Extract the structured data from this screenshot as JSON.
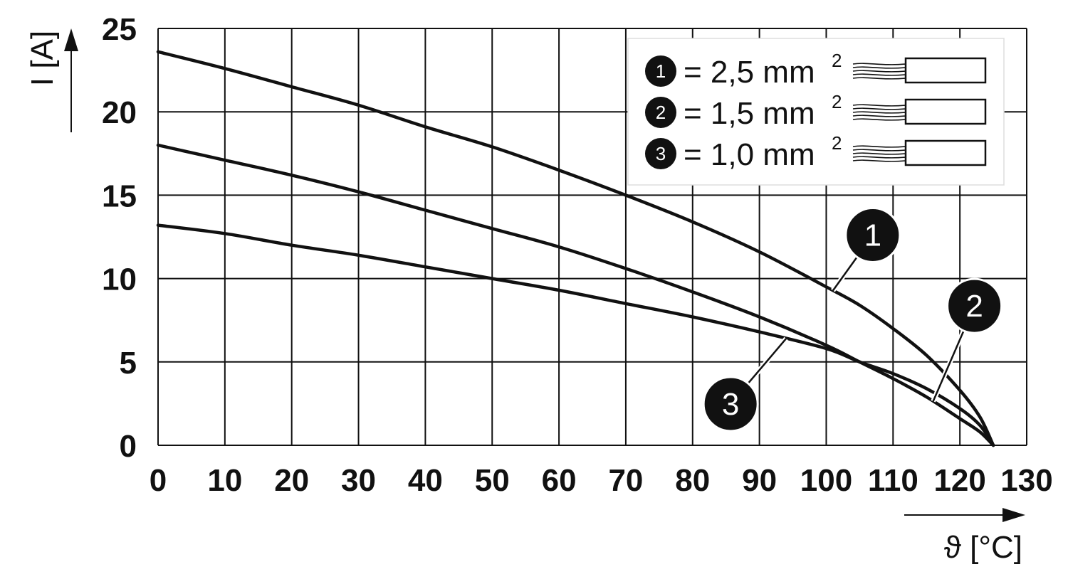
{
  "chart_data": {
    "type": "line",
    "title": "",
    "xlabel": "ϑ [°C]",
    "ylabel": "I [A]",
    "xlim": [
      0,
      130
    ],
    "ylim": [
      0,
      25
    ],
    "x_ticks": [
      "0",
      "10",
      "20",
      "30",
      "40",
      "50",
      "60",
      "70",
      "80",
      "90",
      "100",
      "110",
      "120",
      "130"
    ],
    "y_ticks": [
      "0",
      "5",
      "10",
      "15",
      "20",
      "25"
    ],
    "grid": true,
    "legend_position": "top-right",
    "legend": [
      {
        "marker": "1",
        "text": "= 2,5 mm",
        "sup": "2"
      },
      {
        "marker": "2",
        "text": "= 1,5 mm",
        "sup": "2"
      },
      {
        "marker": "3",
        "text": "= 1,0 mm",
        "sup": "2"
      }
    ],
    "series": [
      {
        "marker": "1",
        "x": [
          0,
          10,
          20,
          30,
          40,
          50,
          60,
          70,
          80,
          90,
          100,
          105,
          110,
          115,
          120,
          123,
          125
        ],
        "y": [
          23.6,
          22.6,
          21.5,
          20.4,
          19.1,
          17.9,
          16.5,
          15.0,
          13.4,
          11.6,
          9.5,
          8.4,
          7.0,
          5.4,
          3.3,
          1.7,
          0
        ]
      },
      {
        "marker": "2",
        "x": [
          0,
          10,
          20,
          30,
          40,
          50,
          60,
          70,
          80,
          90,
          100,
          105,
          110,
          115,
          120,
          123,
          125
        ],
        "y": [
          18.0,
          17.1,
          16.2,
          15.2,
          14.1,
          13.0,
          11.9,
          10.6,
          9.2,
          7.7,
          6.0,
          5.0,
          4.0,
          2.9,
          1.6,
          0.8,
          0
        ]
      },
      {
        "marker": "3",
        "x": [
          0,
          10,
          20,
          30,
          40,
          50,
          60,
          70,
          80,
          90,
          100,
          105,
          110,
          115,
          120,
          123,
          125
        ],
        "y": [
          13.2,
          12.7,
          12.0,
          11.4,
          10.7,
          10.0,
          9.3,
          8.5,
          7.7,
          6.8,
          5.8,
          5.0,
          4.3,
          3.4,
          2.2,
          1.2,
          0
        ]
      }
    ],
    "callouts": [
      {
        "marker": "1",
        "series_index": 0,
        "at_x": 101
      },
      {
        "marker": "2",
        "series_index": 1,
        "at_x": 116
      },
      {
        "marker": "3",
        "series_index": 2,
        "at_x": 94
      }
    ]
  }
}
